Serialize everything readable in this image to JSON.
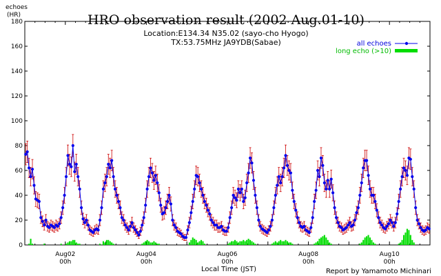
{
  "chart_data": {
    "type": "line",
    "title": "HRO observation result (2002 Aug.01-10)",
    "subtitle_lines": [
      "Location:E134.34 N35.02 (sayo-cho Hyogo)",
      "TX:53.75MHz JA9YDB(Sabae)"
    ],
    "ylabel_lines": [
      "echoes",
      "(HR)"
    ],
    "xlabel": "Local Time (JST)",
    "credit": "Report by Yamamoto Michinari",
    "ylim": [
      0,
      180
    ],
    "xlim_hours": [
      0,
      240
    ],
    "y_ticks": [
      {
        "value": 0,
        "label": "0"
      },
      {
        "value": 20,
        "label": "20"
      },
      {
        "value": 40,
        "label": "40"
      },
      {
        "value": 60,
        "label": "60"
      },
      {
        "value": 80,
        "label": "80"
      },
      {
        "value": 100,
        "label": "100"
      },
      {
        "value": 120,
        "label": "120"
      },
      {
        "value": 140,
        "label": "140"
      },
      {
        "value": 160,
        "label": "160"
      },
      {
        "value": 180,
        "label": "180"
      }
    ],
    "x_tick_labels": [
      {
        "hour": 24,
        "date": "Aug02",
        "time": "00h"
      },
      {
        "hour": 72,
        "date": "Aug04",
        "time": "00h"
      },
      {
        "hour": 120,
        "date": "Aug06",
        "time": "00h"
      },
      {
        "hour": 168,
        "date": "Aug08",
        "time": "00h"
      },
      {
        "hour": 216,
        "date": "Aug10",
        "time": "00h"
      }
    ],
    "legend_position": "top-right",
    "series": [
      {
        "name": "all echoes",
        "color": "#0000ee",
        "error_color": "#cc0000",
        "values": [
          73,
          75,
          62,
          55,
          61,
          48,
          37,
          36,
          35,
          22,
          19,
          16,
          20,
          15,
          14,
          16,
          15,
          14,
          16,
          15,
          17,
          22,
          30,
          40,
          55,
          72,
          65,
          63,
          80,
          59,
          65,
          55,
          45,
          30,
          21,
          18,
          20,
          16,
          12,
          11,
          10,
          12,
          13,
          12,
          20,
          30,
          45,
          50,
          55,
          65,
          62,
          68,
          55,
          45,
          40,
          35,
          30,
          22,
          20,
          16,
          14,
          12,
          15,
          18,
          14,
          12,
          10,
          8,
          11,
          16,
          22,
          32,
          45,
          55,
          62,
          58,
          52,
          56,
          50,
          42,
          32,
          25,
          26,
          30,
          35,
          40,
          33,
          20,
          16,
          14,
          11,
          10,
          9,
          7,
          6,
          6,
          12,
          18,
          26,
          35,
          45,
          56,
          55,
          50,
          45,
          40,
          35,
          32,
          28,
          25,
          20,
          18,
          16,
          16,
          14,
          14,
          15,
          12,
          11,
          11,
          14,
          22,
          30,
          40,
          38,
          36,
          45,
          42,
          45,
          35,
          38,
          50,
          58,
          70,
          66,
          52,
          40,
          30,
          20,
          15,
          13,
          12,
          11,
          10,
          12,
          15,
          20,
          30,
          40,
          48,
          55,
          50,
          55,
          62,
          72,
          64,
          60,
          58,
          44,
          35,
          28,
          22,
          18,
          15,
          14,
          15,
          12,
          11,
          10,
          14,
          22,
          35,
          44,
          60,
          55,
          70,
          64,
          50,
          45,
          52,
          45,
          53,
          42,
          30,
          22,
          18,
          15,
          14,
          12,
          13,
          14,
          16,
          18,
          15,
          16,
          20,
          26,
          30,
          40,
          50,
          62,
          68,
          68,
          56,
          45,
          40,
          40,
          35,
          28,
          22,
          18,
          16,
          14,
          13,
          15,
          17,
          20,
          18,
          15,
          18,
          25,
          35,
          45,
          55,
          62,
          60,
          56,
          70,
          69,
          55,
          45,
          30,
          20,
          17,
          14,
          12,
          11,
          12,
          14,
          13
        ]
      },
      {
        "name": "long echo (>10)",
        "color": "#00dd00",
        "values": [
          0,
          0,
          1,
          5,
          1,
          0,
          0,
          0,
          0,
          0,
          0,
          1,
          0,
          0,
          0,
          0,
          0,
          0,
          0,
          0,
          0,
          1,
          0,
          0,
          1,
          2,
          3,
          3,
          4,
          4,
          2,
          1,
          1,
          0,
          0,
          0,
          0,
          0,
          0,
          0,
          0,
          0,
          0,
          0,
          1,
          0,
          3,
          2,
          4,
          4,
          3,
          2,
          1,
          0,
          0,
          0,
          0,
          0,
          0,
          0,
          0,
          0,
          0,
          0,
          0,
          0,
          0,
          0,
          0,
          1,
          2,
          3,
          4,
          3,
          2,
          2,
          3,
          2,
          1,
          1,
          0,
          0,
          0,
          0,
          0,
          0,
          0,
          0,
          0,
          0,
          0,
          0,
          0,
          0,
          0,
          0,
          0,
          2,
          4,
          6,
          5,
          4,
          2,
          3,
          4,
          3,
          1,
          0,
          0,
          0,
          0,
          0,
          0,
          0,
          0,
          0,
          0,
          0,
          0,
          0,
          1,
          2,
          3,
          3,
          4,
          3,
          2,
          3,
          3,
          4,
          3,
          4,
          5,
          4,
          3,
          2,
          1,
          0,
          0,
          0,
          0,
          0,
          0,
          0,
          0,
          0,
          1,
          2,
          3,
          2,
          3,
          4,
          3,
          3,
          4,
          3,
          2,
          2,
          1,
          0,
          0,
          0,
          0,
          0,
          0,
          0,
          0,
          0,
          0,
          0,
          0,
          1,
          2,
          3,
          5,
          6,
          7,
          8,
          6,
          4,
          2,
          1,
          0,
          0,
          0,
          0,
          0,
          0,
          0,
          0,
          0,
          0,
          0,
          0,
          0,
          0,
          0,
          0,
          1,
          2,
          4,
          6,
          7,
          8,
          6,
          4,
          2,
          1,
          0,
          0,
          0,
          0,
          0,
          0,
          0,
          0,
          0,
          0,
          0,
          0,
          0,
          1,
          2,
          4,
          8,
          10,
          13,
          12,
          8,
          4,
          2,
          0,
          0,
          0,
          0,
          0,
          0,
          0,
          0,
          0
        ]
      }
    ]
  }
}
